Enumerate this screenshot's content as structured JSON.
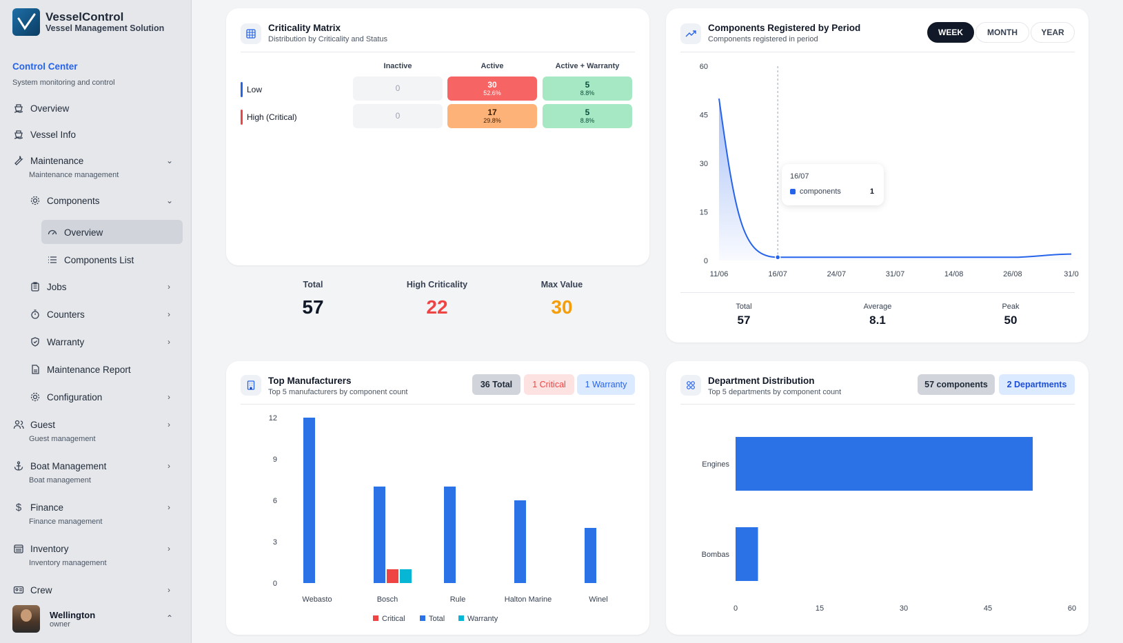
{
  "brand": {
    "name": "VesselControl",
    "subtitle": "Vessel Management Solution"
  },
  "sidebar": {
    "section_title": "Control Center",
    "section_subtitle": "System monitoring and control",
    "items": [
      {
        "label": "Overview",
        "icon": "ship-icon"
      },
      {
        "label": "Vessel Info",
        "icon": "ship-icon"
      },
      {
        "label": "Maintenance",
        "sub": "Maintenance management",
        "icon": "wrench-icon"
      },
      {
        "label": "Components",
        "icon": "gear-icon"
      },
      {
        "label": "Overview",
        "icon": "gauge-icon"
      },
      {
        "label": "Components List",
        "icon": "list-icon"
      },
      {
        "label": "Jobs",
        "icon": "clipboard-icon"
      },
      {
        "label": "Counters",
        "icon": "timer-icon"
      },
      {
        "label": "Warranty",
        "icon": "shield-icon"
      },
      {
        "label": "Maintenance Report",
        "icon": "report-icon"
      },
      {
        "label": "Configuration",
        "icon": "gear-icon"
      },
      {
        "label": "Guest",
        "sub": "Guest management",
        "icon": "users-icon"
      },
      {
        "label": "Boat Management",
        "sub": "Boat management",
        "icon": "anchor-icon"
      },
      {
        "label": "Finance",
        "sub": "Finance management",
        "icon": "dollar-icon"
      },
      {
        "label": "Inventory",
        "sub": "Inventory management",
        "icon": "inventory-icon"
      },
      {
        "label": "Crew",
        "icon": "id-card-icon"
      }
    ],
    "user": {
      "name": "Wellington",
      "role": "owner"
    }
  },
  "criticality": {
    "title": "Criticality Matrix",
    "subtitle": "Distribution by Criticality and Status",
    "columns": [
      "Inactive",
      "Active",
      "Active + Warranty"
    ],
    "rows": [
      {
        "label": "Low",
        "color": "#2563eb",
        "cells": [
          {
            "v": "0",
            "p": ""
          },
          {
            "v": "30",
            "p": "52.6%"
          },
          {
            "v": "5",
            "p": "8.8%"
          }
        ]
      },
      {
        "label": "High (Critical)",
        "color": "#ef4444",
        "cells": [
          {
            "v": "0",
            "p": ""
          },
          {
            "v": "17",
            "p": "29.8%"
          },
          {
            "v": "5",
            "p": "8.8%"
          }
        ]
      }
    ],
    "stats": [
      {
        "label": "Total",
        "value": "57",
        "color": "#111827"
      },
      {
        "label": "High Criticality",
        "value": "22",
        "color": "#ef4444"
      },
      {
        "label": "Max Value",
        "value": "30",
        "color": "#f59e0b"
      }
    ]
  },
  "period": {
    "title": "Components Registered by Period",
    "subtitle": "Components registered in period",
    "tabs": [
      "WEEK",
      "MONTH",
      "YEAR"
    ],
    "active_tab": "WEEK",
    "tooltip": {
      "date": "16/07",
      "series": "components",
      "value": "1"
    },
    "stats": [
      {
        "label": "Total",
        "value": "57"
      },
      {
        "label": "Average",
        "value": "8.1"
      },
      {
        "label": "Peak",
        "value": "50"
      }
    ]
  },
  "manufacturers": {
    "title": "Top Manufacturers",
    "subtitle": "Top 5 manufacturers by component count",
    "badges": {
      "total": "36 Total",
      "critical": "1 Critical",
      "warranty": "1 Warranty"
    }
  },
  "departments": {
    "title": "Department Distribution",
    "subtitle": "Top 5 departments by component count",
    "badges": {
      "components": "57 components",
      "departments": "2 Departments"
    }
  },
  "chart_data": [
    {
      "type": "area",
      "x": [
        "11/06",
        "16/07",
        "24/07",
        "31/07",
        "14/08",
        "26/08",
        "31/0"
      ],
      "series": [
        {
          "name": "components",
          "values": [
            50,
            1,
            1,
            1,
            1,
            1,
            2
          ]
        }
      ],
      "yticks": [
        "0",
        "15",
        "30",
        "45",
        "60"
      ],
      "ylim": [
        0,
        60
      ],
      "grid": false
    },
    {
      "type": "bar",
      "categories": [
        "Webasto",
        "Bosch",
        "Rule",
        "Halton Marine",
        "Winel"
      ],
      "series": [
        {
          "name": "Critical",
          "color": "#ef4444",
          "values": [
            0,
            1,
            0,
            0,
            0
          ]
        },
        {
          "name": "Total",
          "color": "#2b72e6",
          "values": [
            12,
            7,
            7,
            6,
            4
          ]
        },
        {
          "name": "Warranty",
          "color": "#06b6d4",
          "values": [
            0,
            1,
            0,
            0,
            0
          ]
        }
      ],
      "yticks": [
        "0",
        "3",
        "6",
        "9",
        "12"
      ],
      "ylim": [
        0,
        12
      ],
      "legend": "bottom"
    },
    {
      "type": "bar",
      "orientation": "horizontal",
      "categories": [
        "Engines",
        "Bombas"
      ],
      "values": [
        53,
        4
      ],
      "xticks": [
        "0",
        "15",
        "30",
        "45",
        "60"
      ],
      "xlim": [
        0,
        60
      ]
    }
  ]
}
